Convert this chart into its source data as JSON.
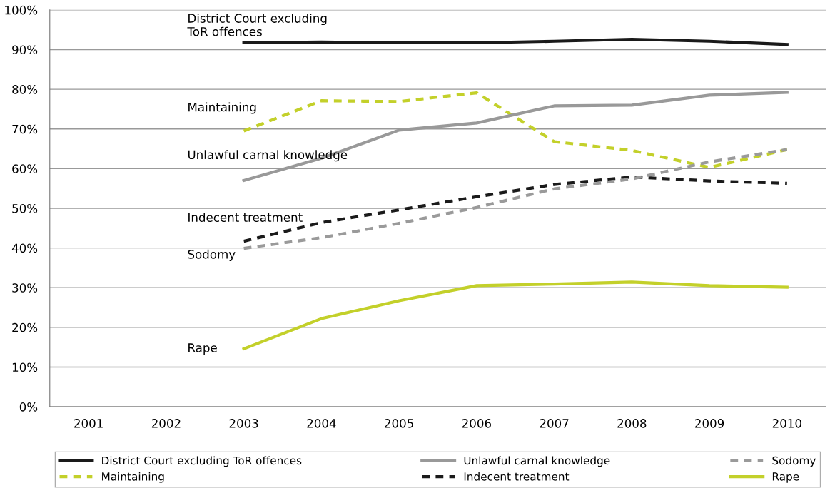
{
  "chart_data": {
    "type": "line",
    "categories": [
      "2001",
      "2002",
      "2003",
      "2004",
      "2005",
      "2006",
      "2007",
      "2008",
      "2009",
      "2010"
    ],
    "series": [
      {
        "name": "District Court excluding ToR offences",
        "color": "#1a1a1a",
        "line_style": "solid",
        "values": [
          null,
          null,
          91.7,
          91.9,
          91.7,
          91.7,
          92.1,
          92.6,
          92.1,
          91.3
        ]
      },
      {
        "name": "Maintaining",
        "color": "#c3d02a",
        "line_style": "dashed",
        "values": [
          null,
          null,
          69.5,
          77.1,
          76.9,
          79.1,
          66.8,
          64.6,
          60.3,
          64.8
        ]
      },
      {
        "name": "Unlawful carnal knowledge",
        "color": "#999999",
        "line_style": "solid",
        "values": [
          null,
          null,
          57.0,
          62.6,
          69.7,
          71.5,
          75.8,
          76.0,
          78.5,
          79.2
        ]
      },
      {
        "name": "Indecent treatment",
        "color": "#1a1a1a",
        "line_style": "dashed",
        "values": [
          null,
          null,
          41.7,
          46.4,
          49.6,
          52.9,
          56.0,
          57.9,
          56.9,
          56.3
        ]
      },
      {
        "name": "Sodomy",
        "color": "#9a9a9a",
        "line_style": "dashed",
        "values": [
          null,
          null,
          39.9,
          42.6,
          46.2,
          50.2,
          54.9,
          57.4,
          61.7,
          64.8
        ]
      },
      {
        "name": "Rape",
        "color": "#c3d02a",
        "line_style": "solid",
        "values": [
          null,
          null,
          14.6,
          22.2,
          26.7,
          30.5,
          30.9,
          31.4,
          30.5,
          30.1
        ]
      }
    ],
    "ylim": [
      0,
      100
    ],
    "yticks": [
      {
        "value": 0,
        "label": "0%"
      },
      {
        "value": 10,
        "label": "10%"
      },
      {
        "value": 20,
        "label": "20%"
      },
      {
        "value": 30,
        "label": "30%"
      },
      {
        "value": 40,
        "label": "40%"
      },
      {
        "value": 50,
        "label": "50%"
      },
      {
        "value": 60,
        "label": "60%"
      },
      {
        "value": 70,
        "label": "70%"
      },
      {
        "value": 80,
        "label": "80%"
      },
      {
        "value": 90,
        "label": "90%"
      },
      {
        "value": 100,
        "label": "100%"
      }
    ],
    "annotations": [
      "District Court excluding\nToR offences",
      "Maintaining",
      "Unlawful carnal knowledge",
      "Indecent treatment",
      "Sodomy",
      "Rape"
    ],
    "grid": "y",
    "legend": "bottom",
    "marker": "none"
  }
}
